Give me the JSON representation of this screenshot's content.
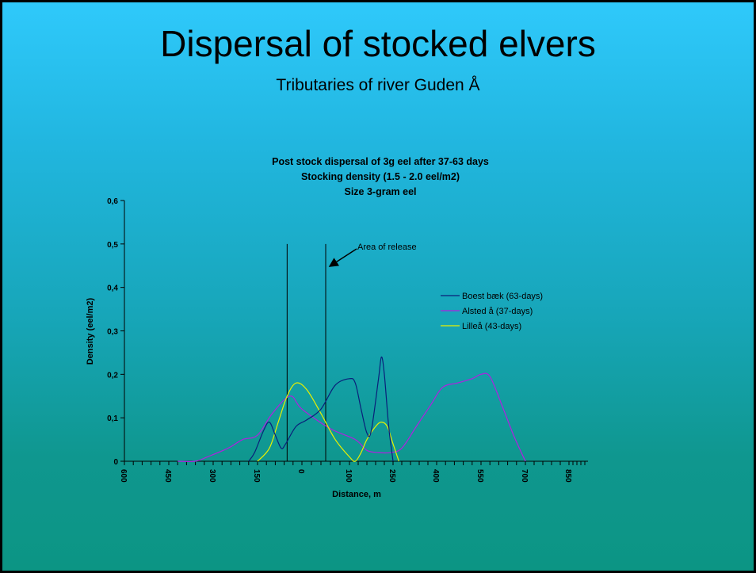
{
  "slide": {
    "title": "Dispersal of stocked elvers",
    "subtitle": "Tributaries of river Guden Å"
  },
  "chart_data": {
    "type": "line",
    "title": "Post stock dispersal of 3g eel after 37-63 days\nStocking density (1.5 - 2.0 eel/m2)\nSize 3-gram eel",
    "xlabel": "Distance, m",
    "ylabel": "Density (eel/m2)",
    "ylim": [
      0,
      0.6
    ],
    "yticks": [
      "0",
      "0,1",
      "0,2",
      "0,3",
      "0,4",
      "0,5",
      "0,6"
    ],
    "xticks": [
      "600",
      "450",
      "300",
      "150",
      "0",
      "100",
      "250",
      "400",
      "550",
      "700",
      "850"
    ],
    "grid": false,
    "legend_position": "right",
    "annotation": "Area of release",
    "release_lines_x": [
      -50,
      50
    ],
    "series": [
      {
        "name": "Boest bæk (63-days)",
        "color": "#0a1f7a",
        "points": [
          [
            -180,
            0
          ],
          [
            -160,
            0.02
          ],
          [
            -130,
            0.07
          ],
          [
            -110,
            0.09
          ],
          [
            -90,
            0.06
          ],
          [
            -70,
            0.03
          ],
          [
            -55,
            0.04
          ],
          [
            -20,
            0.08
          ],
          [
            10,
            0.095
          ],
          [
            40,
            0.12
          ],
          [
            70,
            0.175
          ],
          [
            100,
            0.19
          ],
          [
            120,
            0.18
          ],
          [
            140,
            0.12
          ],
          [
            160,
            0.065
          ],
          [
            175,
            0.07
          ],
          [
            200,
            0.19
          ],
          [
            210,
            0.24
          ],
          [
            220,
            0.2
          ],
          [
            235,
            0.08
          ],
          [
            250,
            0
          ]
        ]
      },
      {
        "name": "Alsted å (37-days)",
        "color": "#b020e0",
        "points": [
          [
            -420,
            0
          ],
          [
            -360,
            0
          ],
          [
            -320,
            0.01
          ],
          [
            -250,
            0.03
          ],
          [
            -200,
            0.05
          ],
          [
            -150,
            0.06
          ],
          [
            -100,
            0.11
          ],
          [
            -40,
            0.15
          ],
          [
            0,
            0.12
          ],
          [
            60,
            0.075
          ],
          [
            120,
            0.05
          ],
          [
            160,
            0.025
          ],
          [
            200,
            0.02
          ],
          [
            240,
            0.02
          ],
          [
            280,
            0.03
          ],
          [
            330,
            0.08
          ],
          [
            380,
            0.13
          ],
          [
            420,
            0.17
          ],
          [
            470,
            0.18
          ],
          [
            520,
            0.19
          ],
          [
            550,
            0.2
          ],
          [
            580,
            0.195
          ],
          [
            620,
            0.13
          ],
          [
            660,
            0.06
          ],
          [
            700,
            0
          ]
        ]
      },
      {
        "name": "Lilleå (43-days)",
        "color": "#e8f000",
        "points": [
          [
            -150,
            0
          ],
          [
            -110,
            0.03
          ],
          [
            -80,
            0.09
          ],
          [
            -50,
            0.15
          ],
          [
            -20,
            0.18
          ],
          [
            10,
            0.165
          ],
          [
            40,
            0.11
          ],
          [
            70,
            0.05
          ],
          [
            100,
            0.01
          ],
          [
            120,
            0
          ],
          [
            140,
            0.02
          ],
          [
            160,
            0.05
          ],
          [
            190,
            0.08
          ],
          [
            210,
            0.09
          ],
          [
            230,
            0.08
          ],
          [
            250,
            0.04
          ],
          [
            270,
            0
          ]
        ]
      }
    ]
  }
}
